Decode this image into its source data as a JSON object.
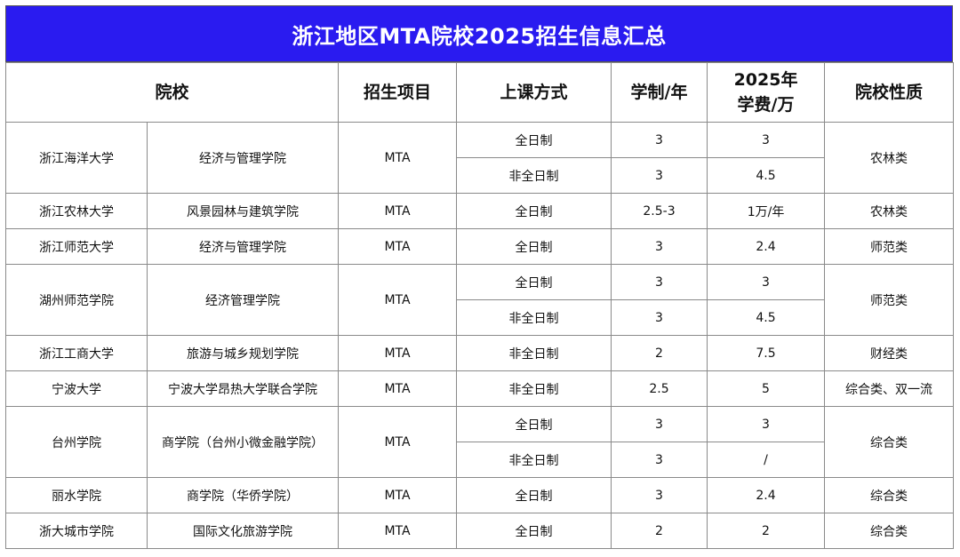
{
  "title": "浙江地区MTA院校2025招生信息汇总",
  "colors": {
    "title_bg": "#2a1bf0",
    "title_text": "#ffffff",
    "border": "#8a8a8a"
  },
  "headers": {
    "school": "院校",
    "program": "招生项目",
    "mode": "上课方式",
    "duration": "学制/年",
    "fee_line1": "2025年",
    "fee_line2": "学费/万",
    "nature": "院校性质"
  },
  "schools": [
    {
      "name": "浙江海洋大学",
      "college": "经济与管理学院",
      "program": "MTA",
      "rows": [
        {
          "mode": "全日制",
          "duration": "3",
          "fee": "3"
        },
        {
          "mode": "非全日制",
          "duration": "3",
          "fee": "4.5"
        }
      ],
      "nature": "农林类"
    },
    {
      "name": "浙江农林大学",
      "college": "风景园林与建筑学院",
      "program": "MTA",
      "rows": [
        {
          "mode": "全日制",
          "duration": "2.5-3",
          "fee": "1万/年"
        }
      ],
      "nature": "农林类"
    },
    {
      "name": "浙江师范大学",
      "college": "经济与管理学院",
      "program": "MTA",
      "rows": [
        {
          "mode": "全日制",
          "duration": "3",
          "fee": "2.4"
        }
      ],
      "nature": "师范类"
    },
    {
      "name": "湖州师范学院",
      "college": "经济管理学院",
      "program": "MTA",
      "rows": [
        {
          "mode": "全日制",
          "duration": "3",
          "fee": "3"
        },
        {
          "mode": "非全日制",
          "duration": "3",
          "fee": "4.5"
        }
      ],
      "nature": "师范类"
    },
    {
      "name": "浙江工商大学",
      "college": "旅游与城乡规划学院",
      "program": "MTA",
      "rows": [
        {
          "mode": "非全日制",
          "duration": "2",
          "fee": "7.5"
        }
      ],
      "nature": "财经类"
    },
    {
      "name": "宁波大学",
      "college": "宁波大学昂热大学联合学院",
      "program": "MTA",
      "rows": [
        {
          "mode": "非全日制",
          "duration": "2.5",
          "fee": "5"
        }
      ],
      "nature": "综合类、双一流"
    },
    {
      "name": "台州学院",
      "college": "商学院（台州小微金融学院）",
      "program": "MTA",
      "rows": [
        {
          "mode": "全日制",
          "duration": "3",
          "fee": "3"
        },
        {
          "mode": "非全日制",
          "duration": "3",
          "fee": "/"
        }
      ],
      "nature": "综合类"
    },
    {
      "name": "丽水学院",
      "college": "商学院（华侨学院）",
      "program": "MTA",
      "rows": [
        {
          "mode": "全日制",
          "duration": "3",
          "fee": "2.4"
        }
      ],
      "nature": "综合类"
    },
    {
      "name": "浙大城市学院",
      "college": "国际文化旅游学院",
      "program": "MTA",
      "rows": [
        {
          "mode": "全日制",
          "duration": "2",
          "fee": "2"
        }
      ],
      "nature": "综合类"
    }
  ]
}
